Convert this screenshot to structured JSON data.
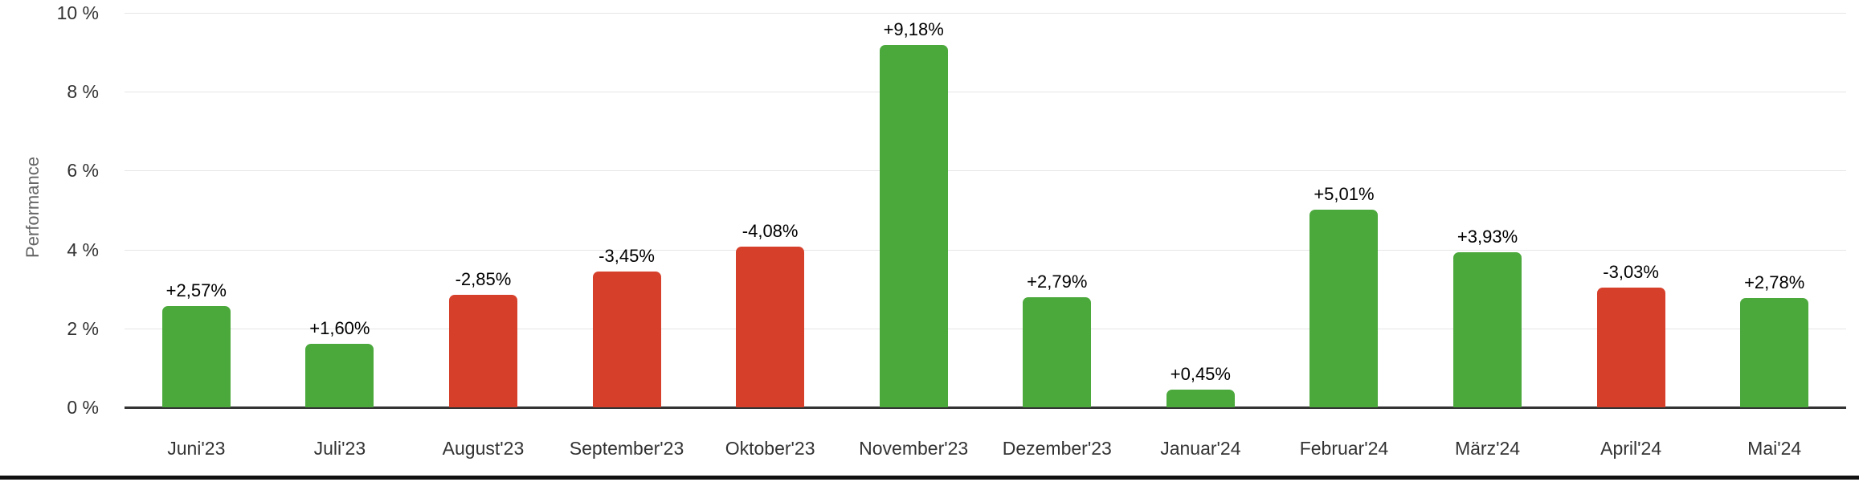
{
  "chart_data": {
    "type": "bar",
    "title": "",
    "ylabel": "Performance",
    "xlabel": "",
    "categories": [
      "Juni'23",
      "Juli'23",
      "August'23",
      "September'23",
      "Oktober'23",
      "November'23",
      "Dezember'23",
      "Januar'24",
      "Februar'24",
      "März'24",
      "April'24",
      "Mai'24"
    ],
    "values": [
      2.57,
      1.6,
      -2.85,
      -3.45,
      -4.08,
      9.18,
      2.79,
      0.45,
      5.01,
      3.93,
      -3.03,
      2.78
    ],
    "value_labels": [
      "+2,57%",
      "+1,60%",
      "-2,85%",
      "-3,45%",
      "-4,08%",
      "+9,18%",
      "+2,79%",
      "+0,45%",
      "+5,01%",
      "+3,93%",
      "-3,03%",
      "+2,78%"
    ],
    "bar_rendering": "bars drawn with absolute-value height above zero line; color indicates sign",
    "ylim": [
      0,
      10
    ],
    "yticks": [
      {
        "value": 10,
        "label": "10 %"
      },
      {
        "value": 8,
        "label": "8 %"
      },
      {
        "value": 6,
        "label": "6 %"
      },
      {
        "value": 4,
        "label": "4 %"
      },
      {
        "value": 2,
        "label": "2 %"
      },
      {
        "value": 0,
        "label": "0 %"
      }
    ],
    "grid": true,
    "legend": false,
    "colors": {
      "positive": "#4ba93c",
      "negative": "#d6402b",
      "gridline": "#e6e6e6",
      "zero_axis": "#333333",
      "tick_text": "#333333",
      "value_text": "#000000",
      "ylabel_text": "#666666",
      "bottom_border": "#111111",
      "background": "#ffffff"
    }
  }
}
